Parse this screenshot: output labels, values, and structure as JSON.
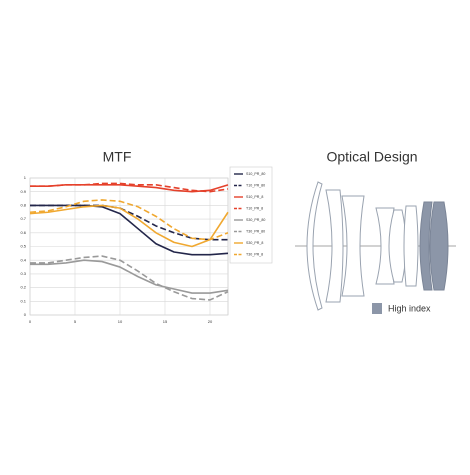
{
  "chart_data": {
    "type": "line",
    "title": "MTF",
    "x": [
      0,
      2,
      4,
      6,
      8,
      10,
      12,
      14,
      16,
      18,
      20,
      22
    ],
    "xlim": [
      0,
      22
    ],
    "xticks": [
      0,
      5,
      10,
      15,
      20
    ],
    "ylim": [
      0,
      1
    ],
    "yticks": [
      0,
      0.1,
      0.2,
      0.3,
      0.4,
      0.5,
      0.6,
      0.7,
      0.8,
      0.9,
      1
    ],
    "grid": true,
    "legend": "right",
    "series": [
      {
        "name": "S10_PR_80",
        "color": "#23264a",
        "dashed": false,
        "values": [
          0.8,
          0.8,
          0.8,
          0.8,
          0.79,
          0.74,
          0.63,
          0.52,
          0.46,
          0.44,
          0.44,
          0.45
        ]
      },
      {
        "name": "T10_PR_80",
        "color": "#23264a",
        "dashed": true,
        "values": [
          0.8,
          0.8,
          0.8,
          0.8,
          0.8,
          0.78,
          0.72,
          0.65,
          0.6,
          0.56,
          0.55,
          0.55
        ]
      },
      {
        "name": "S10_PR_8",
        "color": "#e5412b",
        "dashed": false,
        "values": [
          0.94,
          0.94,
          0.95,
          0.95,
          0.95,
          0.95,
          0.94,
          0.93,
          0.91,
          0.9,
          0.91,
          0.95
        ]
      },
      {
        "name": "T10_PR_8",
        "color": "#e5412b",
        "dashed": true,
        "values": [
          0.94,
          0.94,
          0.95,
          0.95,
          0.96,
          0.96,
          0.95,
          0.95,
          0.93,
          0.91,
          0.9,
          0.92
        ]
      },
      {
        "name": "S30_PR_80",
        "color": "#9a9a9a",
        "dashed": false,
        "values": [
          0.37,
          0.37,
          0.38,
          0.4,
          0.39,
          0.35,
          0.28,
          0.22,
          0.19,
          0.16,
          0.16,
          0.18
        ]
      },
      {
        "name": "T30_PR_80",
        "color": "#9a9a9a",
        "dashed": true,
        "values": [
          0.38,
          0.38,
          0.4,
          0.42,
          0.43,
          0.4,
          0.32,
          0.23,
          0.17,
          0.12,
          0.11,
          0.17
        ]
      },
      {
        "name": "S30_PR_8",
        "color": "#f0a830",
        "dashed": false,
        "values": [
          0.74,
          0.75,
          0.77,
          0.79,
          0.8,
          0.78,
          0.7,
          0.6,
          0.53,
          0.5,
          0.55,
          0.75
        ]
      },
      {
        "name": "T30_PR_8",
        "color": "#f0a830",
        "dashed": true,
        "values": [
          0.75,
          0.76,
          0.79,
          0.83,
          0.84,
          0.83,
          0.79,
          0.72,
          0.63,
          0.56,
          0.55,
          0.6
        ]
      }
    ]
  },
  "diagram": {
    "title": "Optical Design",
    "legend": "High index"
  }
}
